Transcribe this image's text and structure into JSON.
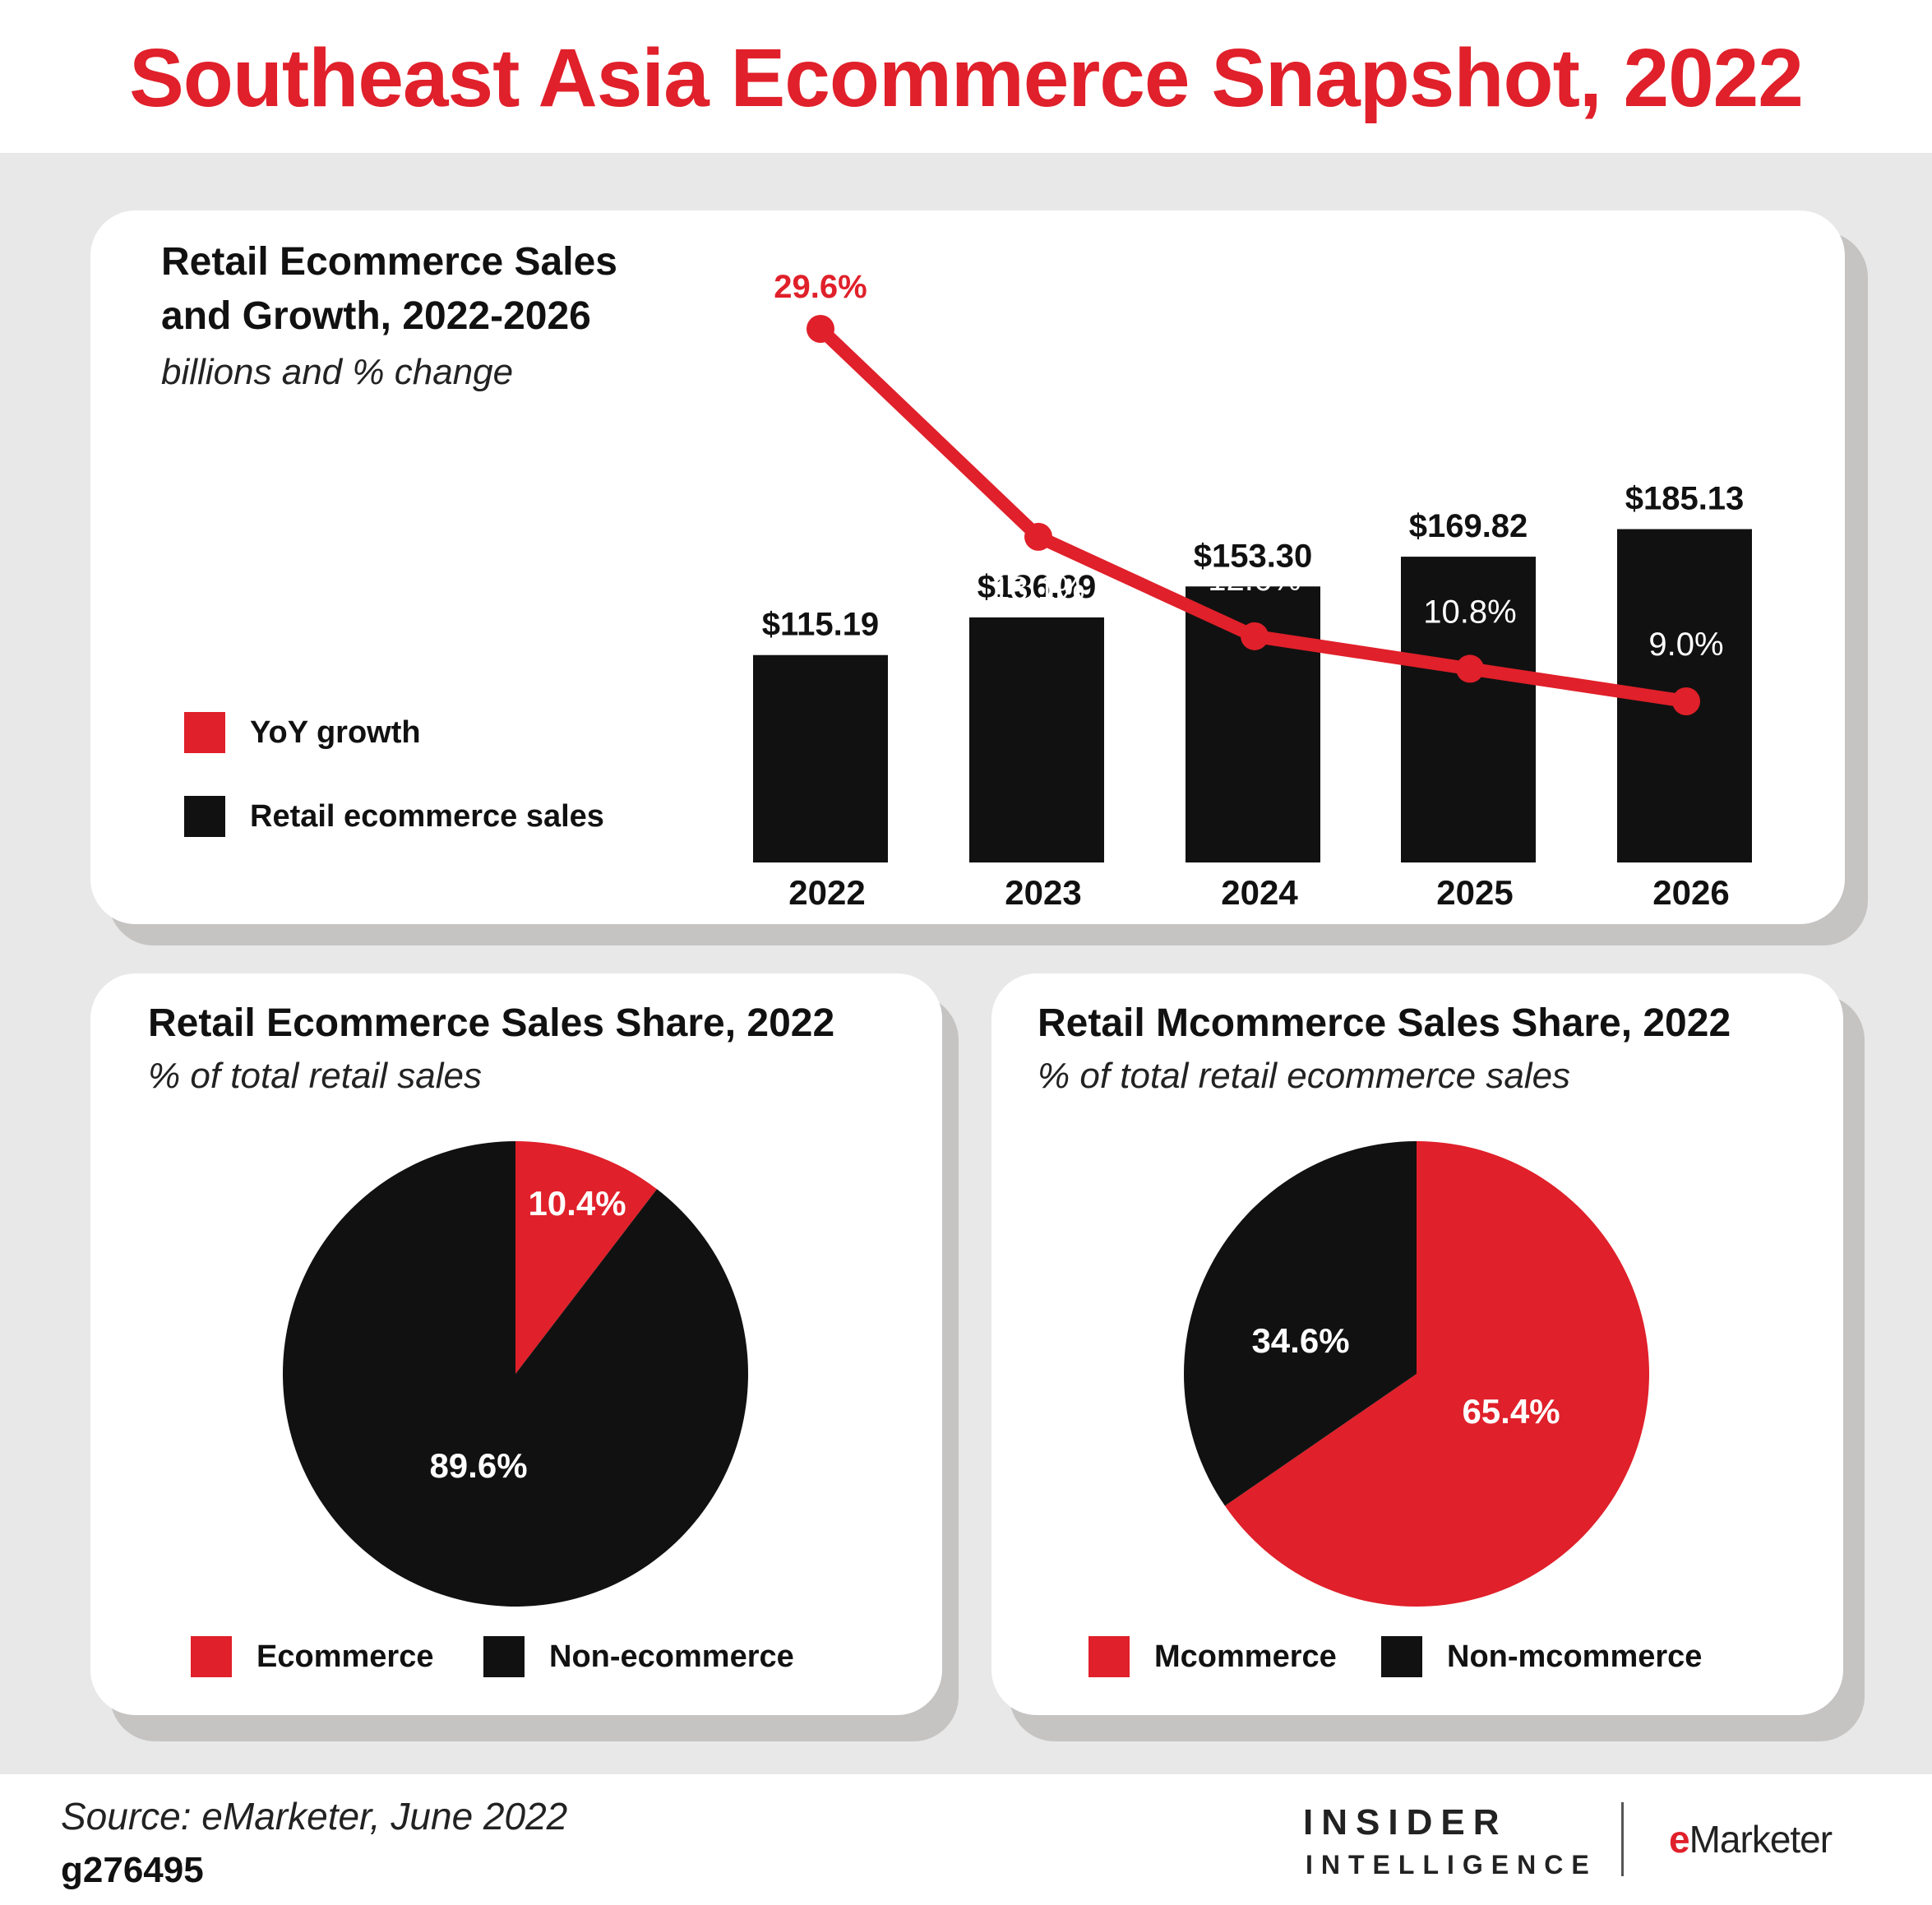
{
  "title": "Southeast Asia Ecommerce Snapshot, 2022",
  "colors": {
    "red": "#e0202a",
    "black": "#111111"
  },
  "top": {
    "title_line1": "Retail Ecommerce Sales",
    "title_line2": "and Growth, 2022-2026",
    "subtitle": "billions and % change",
    "legend": [
      "YoY growth",
      "Retail ecommerce sales"
    ]
  },
  "pie_left": {
    "title": "Retail Ecommerce Sales Share, 2022",
    "subtitle": "% of total retail sales",
    "legend": [
      "Ecommerce",
      "Non-ecommerce"
    ]
  },
  "pie_right": {
    "title": "Retail Mcommerce Sales Share, 2022",
    "subtitle": "% of total retail ecommerce sales",
    "legend": [
      "Mcommerce",
      "Non-mcommerce"
    ]
  },
  "chart_data": [
    {
      "type": "bar",
      "categories": [
        "2022",
        "2023",
        "2024",
        "2025",
        "2026"
      ],
      "series": [
        {
          "name": "Retail ecommerce sales",
          "values": [
            115.19,
            136.09,
            153.3,
            169.82,
            185.13
          ],
          "labels": [
            "$115.19",
            "$136.09",
            "$153.30",
            "$169.82",
            "$185.13"
          ],
          "color": "#111111"
        },
        {
          "name": "YoY growth",
          "type": "line",
          "values": [
            29.6,
            18.1,
            12.6,
            10.8,
            9.0
          ],
          "labels": [
            "29.6%",
            "18.1%",
            "12.6%",
            "10.8%",
            "9.0%"
          ],
          "color": "#e0202a"
        }
      ],
      "title": "Retail Ecommerce Sales and Growth, 2022-2026",
      "subtitle": "billions and % change"
    },
    {
      "type": "pie",
      "categories": [
        "Ecommerce",
        "Non-ecommerce"
      ],
      "values": [
        10.4,
        89.6
      ],
      "labels": [
        "10.4%",
        "89.6%"
      ],
      "colors": [
        "#e0202a",
        "#111111"
      ],
      "title": "Retail Ecommerce Sales Share, 2022",
      "subtitle": "% of total retail sales"
    },
    {
      "type": "pie",
      "categories": [
        "Mcommerce",
        "Non-mcommerce"
      ],
      "values": [
        65.4,
        34.6
      ],
      "labels": [
        "65.4%",
        "34.6%"
      ],
      "colors": [
        "#e0202a",
        "#111111"
      ],
      "title": "Retail Mcommerce Sales Share, 2022",
      "subtitle": "% of total retail ecommerce sales"
    }
  ],
  "footer": {
    "source": "Source: eMarketer, June 2022",
    "id": "g276495",
    "logo_top": "INSIDER",
    "logo_bottom": "INTELLIGENCE",
    "logo_e": "e",
    "logo_marketer": "Marketer"
  }
}
